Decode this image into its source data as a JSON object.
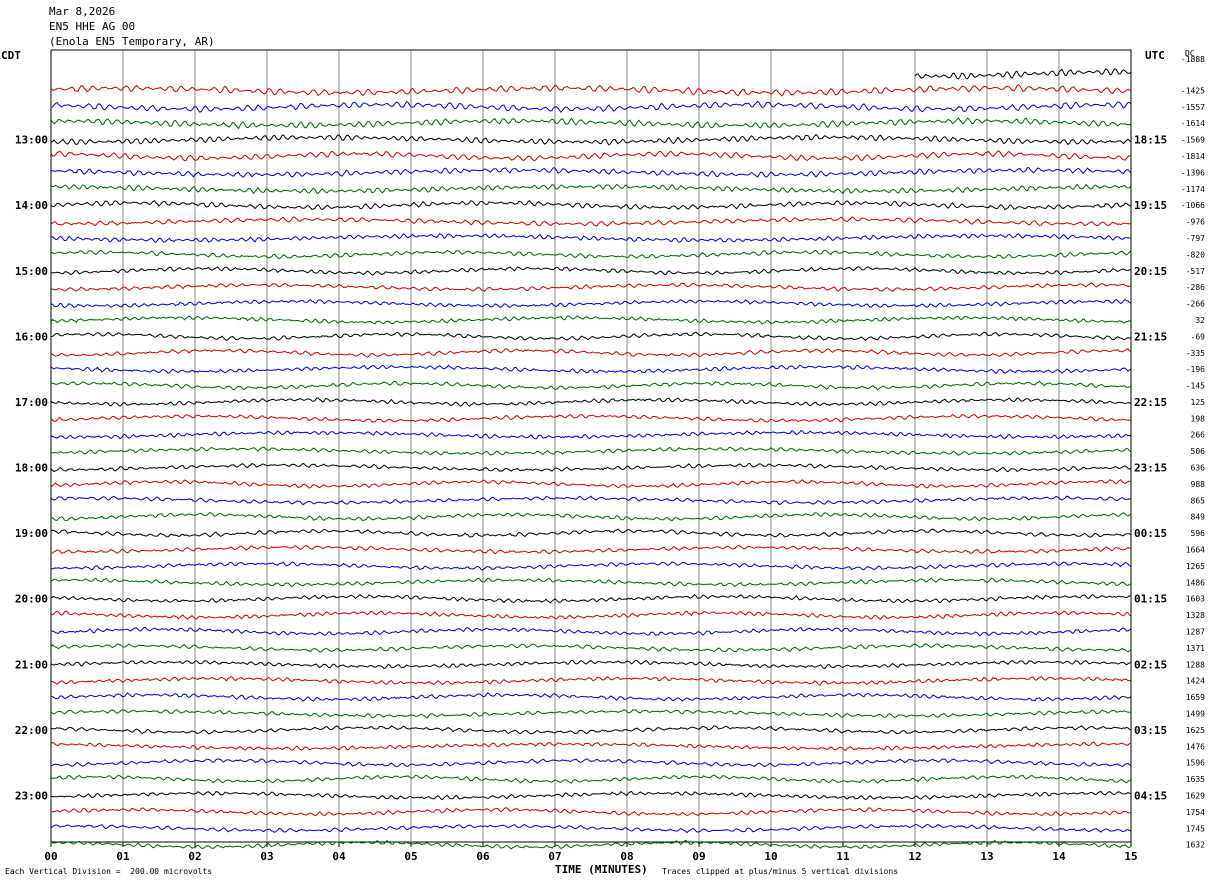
{
  "header": {
    "date": "Mar 8,2026",
    "channel": "EN5 HHE AG 00",
    "location": "(Enola EN5 Temporary, AR)"
  },
  "left_tz": "CDT",
  "right_tz": "UTC",
  "dc_label": "DC",
  "footer": {
    "scale": "Each Vertical Division =  200.00 microvolts",
    "xlabel": "TIME (MINUTES)",
    "clip": "Traces clipped at plus/minus 5 vertical divisions"
  },
  "colors": {
    "black": "#000000",
    "red": "#cc0000",
    "blue": "#0000cc",
    "green": "#006600",
    "grid": "#888888"
  },
  "chart_data": {
    "type": "line",
    "xlabel": "TIME (MINUTES)",
    "x_ticks": [
      "00",
      "01",
      "02",
      "03",
      "04",
      "05",
      "06",
      "07",
      "08",
      "09",
      "10",
      "11",
      "12",
      "13",
      "14",
      "15"
    ],
    "xlim": [
      0,
      15
    ],
    "trace_count": 48,
    "trace_color_cycle": [
      "black",
      "red",
      "blue",
      "green"
    ],
    "left_hour_labels": [
      "13:00",
      "14:00",
      "15:00",
      "16:00",
      "17:00",
      "18:00",
      "19:00",
      "20:00",
      "21:00",
      "22:00",
      "23:00"
    ],
    "right_hour_labels": [
      "18:15",
      "19:15",
      "20:15",
      "21:15",
      "22:15",
      "23:15",
      "00:15",
      "01:15",
      "02:15",
      "03:15",
      "04:15"
    ],
    "dc_offsets": [
      "-1888",
      "-1425",
      "-1557",
      "-1614",
      "-1569",
      "-1814",
      "-1396",
      "-1174",
      "-1066",
      "-976",
      "-797",
      "-820",
      "-517",
      "-286",
      "-266",
      "32",
      "-69",
      "-335",
      "-196",
      "-145",
      "125",
      "198",
      "266",
      "506",
      "636",
      "988",
      "865",
      "849",
      "596",
      "1664",
      "1265",
      "1486",
      "1603",
      "1328",
      "1287",
      "1371",
      "1288",
      "1424",
      "1659",
      "1499",
      "1625",
      "1476",
      "1596",
      "1635",
      "1629",
      "1754",
      "1745",
      "1632"
    ]
  }
}
